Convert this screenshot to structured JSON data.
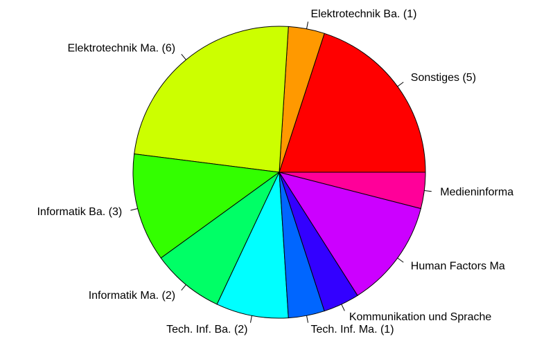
{
  "chart_data": {
    "type": "pie",
    "categories": [
      "Sonstiges (5)",
      "Elektrotechnik Ba. (1)",
      "Elektrotechnik Ma. (6)",
      "Informatik Ba. (3)",
      "Informatik Ma. (2)",
      "Tech. Inf. Ba. (2)",
      "Tech. Inf. Ma. (1)",
      "Kommunikation und Sprache",
      "Human Factors Ma",
      "Medieninforma"
    ],
    "values": [
      5,
      1,
      6,
      3,
      2,
      2,
      1,
      1,
      3,
      1
    ],
    "colors": [
      "#FF0000",
      "#FF9900",
      "#CCFF00",
      "#33FF00",
      "#00FF66",
      "#00FFFF",
      "#0066FF",
      "#3300FF",
      "#CC00FF",
      "#FF0099"
    ]
  }
}
